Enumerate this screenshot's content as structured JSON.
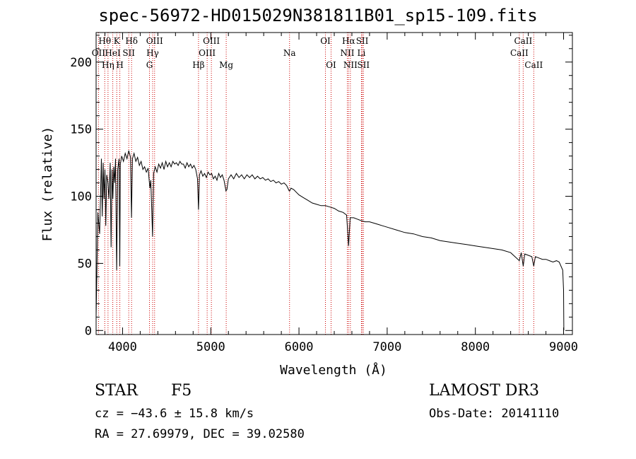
{
  "chart_data": {
    "type": "line",
    "title": "spec-56972-HD015029N381811B01_sp15-109.fits",
    "xlabel": "Wavelength (Å)",
    "ylabel": "Flux (relative)",
    "xlim": [
      3700,
      9100
    ],
    "ylim": [
      -3,
      222
    ],
    "xticks": [
      4000,
      5000,
      6000,
      7000,
      8000,
      9000
    ],
    "yticks": [
      0,
      50,
      100,
      150,
      200
    ],
    "spectrum": [
      [
        3700,
        10
      ],
      [
        3720,
        88
      ],
      [
        3740,
        72
      ],
      [
        3760,
        128
      ],
      [
        3770,
        85
      ],
      [
        3780,
        125
      ],
      [
        3790,
        98
      ],
      [
        3800,
        120
      ],
      [
        3810,
        78
      ],
      [
        3820,
        116
      ],
      [
        3835,
        110
      ],
      [
        3845,
        98
      ],
      [
        3860,
        125
      ],
      [
        3870,
        62
      ],
      [
        3880,
        120
      ],
      [
        3890,
        98
      ],
      [
        3900,
        122
      ],
      [
        3910,
        110
      ],
      [
        3920,
        128
      ],
      [
        3933,
        45
      ],
      [
        3945,
        120
      ],
      [
        3960,
        128
      ],
      [
        3968,
        48
      ],
      [
        3975,
        124
      ],
      [
        3990,
        130
      ],
      [
        4010,
        126
      ],
      [
        4030,
        132
      ],
      [
        4050,
        128
      ],
      [
        4070,
        134
      ],
      [
        4090,
        129
      ],
      [
        4101,
        84
      ],
      [
        4112,
        128
      ],
      [
        4130,
        132
      ],
      [
        4150,
        126
      ],
      [
        4170,
        129
      ],
      [
        4190,
        123
      ],
      [
        4210,
        126
      ],
      [
        4230,
        120
      ],
      [
        4250,
        122
      ],
      [
        4270,
        118
      ],
      [
        4290,
        121
      ],
      [
        4310,
        106
      ],
      [
        4320,
        112
      ],
      [
        4340,
        70
      ],
      [
        4352,
        117
      ],
      [
        4370,
        122
      ],
      [
        4390,
        118
      ],
      [
        4410,
        124
      ],
      [
        4430,
        121
      ],
      [
        4450,
        125
      ],
      [
        4470,
        120
      ],
      [
        4490,
        126
      ],
      [
        4510,
        122
      ],
      [
        4530,
        125
      ],
      [
        4550,
        122
      ],
      [
        4570,
        126
      ],
      [
        4590,
        124
      ],
      [
        4610,
        125
      ],
      [
        4630,
        123
      ],
      [
        4650,
        126
      ],
      [
        4670,
        124
      ],
      [
        4690,
        124
      ],
      [
        4710,
        121
      ],
      [
        4730,
        125
      ],
      [
        4750,
        122
      ],
      [
        4770,
        124
      ],
      [
        4790,
        121
      ],
      [
        4810,
        123
      ],
      [
        4830,
        120
      ],
      [
        4850,
        113
      ],
      [
        4861,
        90
      ],
      [
        4872,
        116
      ],
      [
        4890,
        119
      ],
      [
        4910,
        115
      ],
      [
        4930,
        117
      ],
      [
        4950,
        114
      ],
      [
        4970,
        118
      ],
      [
        4990,
        116
      ],
      [
        5010,
        117
      ],
      [
        5030,
        113
      ],
      [
        5050,
        115
      ],
      [
        5070,
        112
      ],
      [
        5090,
        117
      ],
      [
        5110,
        114
      ],
      [
        5130,
        116
      ],
      [
        5150,
        112
      ],
      [
        5167,
        106
      ],
      [
        5172,
        104
      ],
      [
        5183,
        105
      ],
      [
        5200,
        113
      ],
      [
        5230,
        116
      ],
      [
        5260,
        113
      ],
      [
        5290,
        117
      ],
      [
        5320,
        114
      ],
      [
        5350,
        116
      ],
      [
        5380,
        113
      ],
      [
        5410,
        116
      ],
      [
        5440,
        114
      ],
      [
        5470,
        116
      ],
      [
        5500,
        113
      ],
      [
        5530,
        115
      ],
      [
        5560,
        113
      ],
      [
        5590,
        114
      ],
      [
        5620,
        112
      ],
      [
        5650,
        113
      ],
      [
        5680,
        111
      ],
      [
        5710,
        112
      ],
      [
        5740,
        110
      ],
      [
        5770,
        111
      ],
      [
        5800,
        109
      ],
      [
        5830,
        110
      ],
      [
        5860,
        108
      ],
      [
        5889,
        104
      ],
      [
        5895,
        104
      ],
      [
        5910,
        106
      ],
      [
        5940,
        105
      ],
      [
        5970,
        103
      ],
      [
        6000,
        101
      ],
      [
        6050,
        99
      ],
      [
        6100,
        97
      ],
      [
        6150,
        95
      ],
      [
        6200,
        94
      ],
      [
        6250,
        93
      ],
      [
        6300,
        93
      ],
      [
        6350,
        92
      ],
      [
        6400,
        91
      ],
      [
        6450,
        89
      ],
      [
        6500,
        88
      ],
      [
        6540,
        86
      ],
      [
        6563,
        63
      ],
      [
        6580,
        84
      ],
      [
        6620,
        84
      ],
      [
        6660,
        83
      ],
      [
        6700,
        82
      ],
      [
        6750,
        81
      ],
      [
        6800,
        81
      ],
      [
        6850,
        80
      ],
      [
        6900,
        79
      ],
      [
        6950,
        78
      ],
      [
        7000,
        77
      ],
      [
        7100,
        75
      ],
      [
        7200,
        73
      ],
      [
        7300,
        72
      ],
      [
        7400,
        70
      ],
      [
        7500,
        69
      ],
      [
        7600,
        67
      ],
      [
        7700,
        66
      ],
      [
        7800,
        65
      ],
      [
        7900,
        64
      ],
      [
        8000,
        63
      ],
      [
        8100,
        62
      ],
      [
        8200,
        61
      ],
      [
        8300,
        60
      ],
      [
        8400,
        58
      ],
      [
        8498,
        52
      ],
      [
        8520,
        58
      ],
      [
        8542,
        48
      ],
      [
        8560,
        57
      ],
      [
        8600,
        56
      ],
      [
        8640,
        55
      ],
      [
        8662,
        48
      ],
      [
        8680,
        55
      ],
      [
        8720,
        54
      ],
      [
        8760,
        53
      ],
      [
        8800,
        53
      ],
      [
        8840,
        52
      ],
      [
        8880,
        51
      ],
      [
        8920,
        52
      ],
      [
        8950,
        51
      ],
      [
        8990,
        45
      ],
      [
        9000,
        30
      ],
      [
        9003,
        0
      ]
    ],
    "lines": [
      {
        "label": "Hθ",
        "wave": 3798,
        "row": 0
      },
      {
        "label": "OII",
        "wave": 3727,
        "row": 1
      },
      {
        "label": "Hη",
        "wave": 3835,
        "row": 2
      },
      {
        "label": "K",
        "wave": 3934,
        "row": 0
      },
      {
        "label": "HeI",
        "wave": 3889,
        "row": 1
      },
      {
        "label": "H",
        "wave": 3969,
        "row": 2
      },
      {
        "label": "Hδ",
        "wave": 4102,
        "row": 0
      },
      {
        "label": "SII",
        "wave": 4070,
        "row": 1
      },
      {
        "label": "OIII",
        "wave": 4363,
        "row": 0
      },
      {
        "label": "Hγ",
        "wave": 4341,
        "row": 1
      },
      {
        "label": "G",
        "wave": 4305,
        "row": 2
      },
      {
        "label": "Hβ",
        "wave": 4861,
        "row": 2
      },
      {
        "label": "OIII",
        "wave": 5007,
        "row": 0
      },
      {
        "label": "OIII",
        "wave": 4959,
        "row": 1
      },
      {
        "label": "Mg",
        "wave": 5175,
        "row": 2
      },
      {
        "label": "Na",
        "wave": 5893,
        "row": 1
      },
      {
        "label": "OI",
        "wave": 6300,
        "row": 0
      },
      {
        "label": "OI",
        "wave": 6364,
        "row": 2
      },
      {
        "label": "Hα",
        "wave": 6563,
        "row": 0
      },
      {
        "label": "NII",
        "wave": 6548,
        "row": 1
      },
      {
        "label": "NII",
        "wave": 6583,
        "row": 2
      },
      {
        "label": "SII",
        "wave": 6717,
        "row": 0
      },
      {
        "label": "Li",
        "wave": 6708,
        "row": 1
      },
      {
        "label": "SII",
        "wave": 6731,
        "row": 2
      },
      {
        "label": "CaII",
        "wave": 8542,
        "row": 0
      },
      {
        "label": "CaII",
        "wave": 8498,
        "row": 1
      },
      {
        "label": "CaII",
        "wave": 8662,
        "row": 2
      }
    ]
  },
  "info": {
    "object_class": "STAR",
    "subclass": "F5",
    "survey": "LAMOST DR3",
    "cz": "cz = −43.6 ± 15.8 km/s",
    "obs_date": "Obs-Date: 20141110",
    "radec": "RA =  27.69979, DEC =  39.02580"
  },
  "colors": {
    "line_marker": "#cc0000",
    "spectrum": "#000000"
  }
}
